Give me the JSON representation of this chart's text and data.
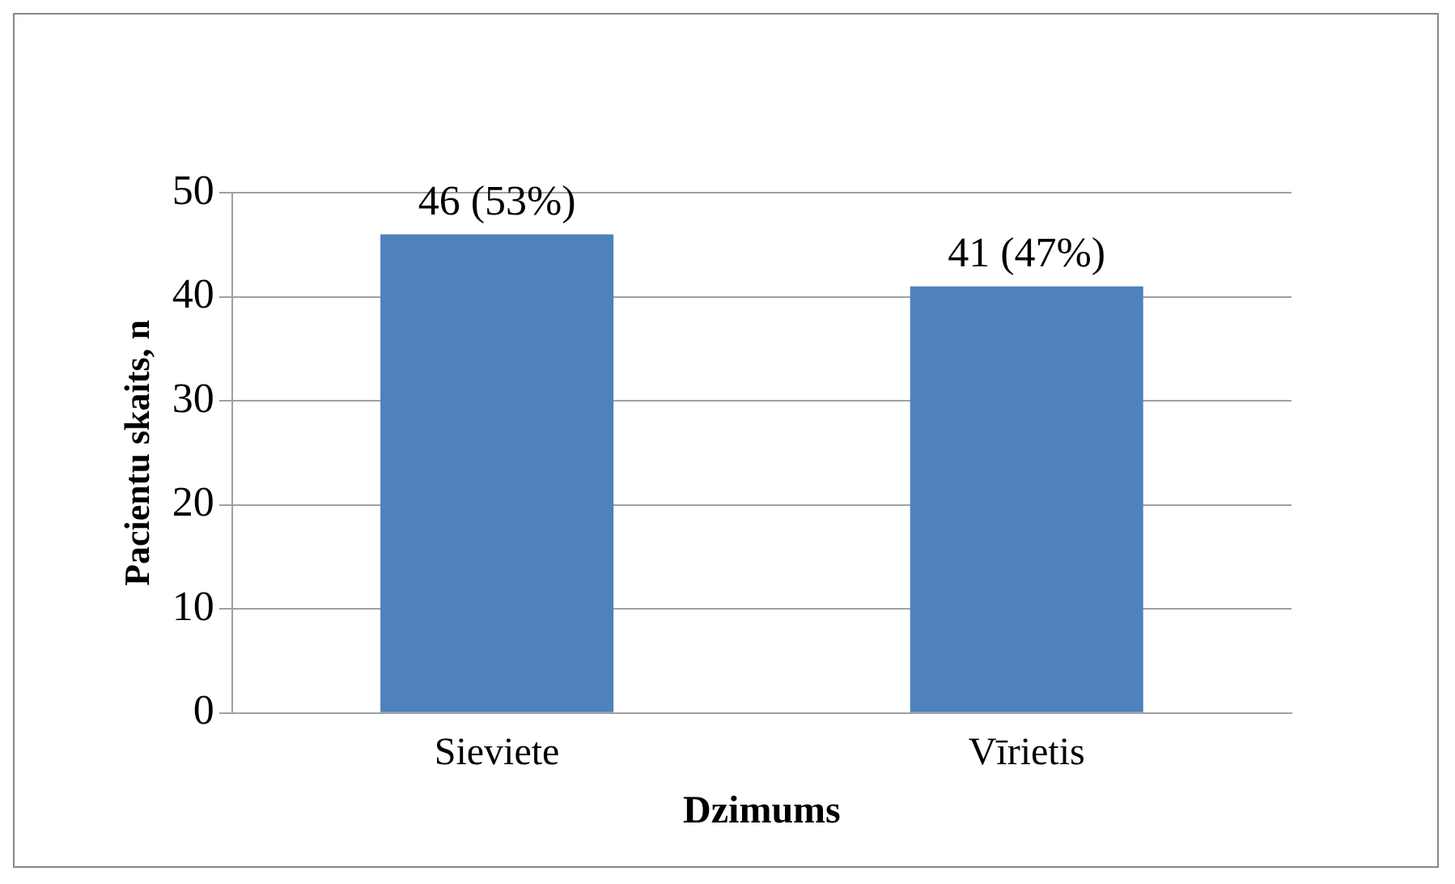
{
  "chart_data": {
    "type": "bar",
    "xlabel": "Dzimums",
    "ylabel": "Pacientu skaits, n",
    "categories": [
      "Sieviete",
      "Vīrietis"
    ],
    "values": [
      46,
      41
    ],
    "value_labels": [
      "46 (53%)",
      "41 (47%)"
    ],
    "color": "#4f81bd",
    "ylim": [
      0,
      50
    ],
    "yticks": [
      0,
      10,
      20,
      30,
      40,
      50
    ],
    "grid": "y"
  }
}
